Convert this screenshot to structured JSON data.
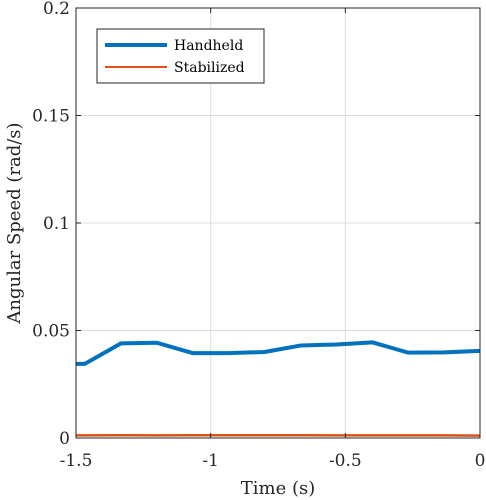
{
  "chart_data": {
    "type": "line",
    "title": "",
    "xlabel": "Time (s)",
    "ylabel": "Angular Speed (rad/s)",
    "xlim": [
      -1.5,
      0
    ],
    "ylim": [
      0,
      0.2
    ],
    "grid": true,
    "legend_position": "top-left",
    "x_ticks": [
      -1.5,
      -1,
      -0.5,
      0
    ],
    "x_tick_labels": [
      "-1.5",
      "-1",
      "-0.5",
      "0"
    ],
    "y_ticks": [
      0,
      0.05,
      0.1,
      0.15,
      0.2
    ],
    "y_tick_labels": [
      "0",
      "0.05",
      "0.1",
      "0.15",
      "0.2"
    ],
    "series": [
      {
        "name": "Handheld",
        "color": "#0072BD",
        "x": [
          -1.5,
          -1.467,
          -1.333,
          -1.2,
          -1.067,
          -0.933,
          -0.8,
          -0.667,
          -0.533,
          -0.4,
          -0.267,
          -0.133,
          0
        ],
        "y": [
          0.0345,
          0.0345,
          0.044,
          0.0443,
          0.0395,
          0.0395,
          0.04,
          0.043,
          0.0435,
          0.0445,
          0.0397,
          0.0398,
          0.0405
        ]
      },
      {
        "name": "Stabilized",
        "color": "#D95319",
        "x": [
          -1.5,
          -1.333,
          -1.2,
          -1.067,
          -0.933,
          -0.8,
          -0.667,
          -0.533,
          -0.4,
          -0.267,
          -0.133,
          0
        ],
        "y": [
          0.0012,
          0.0013,
          0.0012,
          0.0013,
          0.0013,
          0.0013,
          0.0013,
          0.0012,
          0.0012,
          0.0012,
          0.0012,
          0.0011
        ]
      }
    ]
  }
}
